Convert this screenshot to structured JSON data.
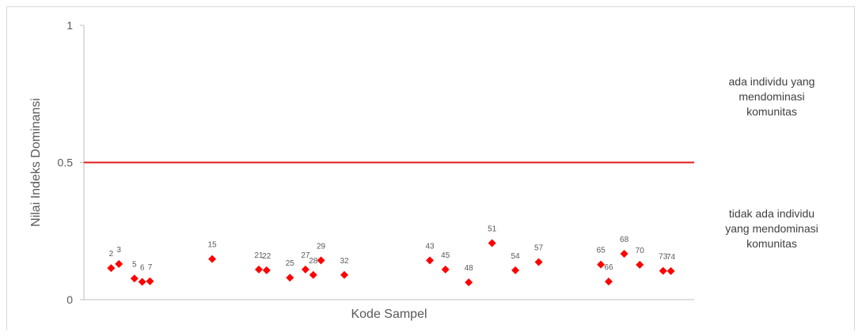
{
  "chart_data": {
    "type": "scatter",
    "title": "",
    "xlabel": "Kode Sampel",
    "ylabel": "Nilai Indeks Dominansi",
    "ylim": [
      0,
      1
    ],
    "yticks": [
      0,
      0.5,
      1
    ],
    "y_tick_labels": [
      "0",
      "0.5",
      "1"
    ],
    "grid": false,
    "marker": "diamond",
    "marker_color": "#ff0000",
    "threshold": {
      "value": 0.5,
      "color": "#e31a1c"
    },
    "x_range": [
      -1.5,
      77
    ],
    "points": [
      {
        "label": "2",
        "x": 2,
        "y": 0.115
      },
      {
        "label": "3",
        "x": 3,
        "y": 0.13
      },
      {
        "label": "5",
        "x": 5,
        "y": 0.077
      },
      {
        "label": "6",
        "x": 6,
        "y": 0.065
      },
      {
        "label": "7",
        "x": 7,
        "y": 0.067
      },
      {
        "label": "15",
        "x": 15,
        "y": 0.148
      },
      {
        "label": "21",
        "x": 21,
        "y": 0.11
      },
      {
        "label": "22",
        "x": 22,
        "y": 0.107
      },
      {
        "label": "25",
        "x": 25,
        "y": 0.08
      },
      {
        "label": "27",
        "x": 27,
        "y": 0.11
      },
      {
        "label": "28",
        "x": 28,
        "y": 0.09
      },
      {
        "label": "29",
        "x": 29,
        "y": 0.143
      },
      {
        "label": "32",
        "x": 32,
        "y": 0.09
      },
      {
        "label": "43",
        "x": 43,
        "y": 0.143
      },
      {
        "label": "45",
        "x": 45,
        "y": 0.11
      },
      {
        "label": "48",
        "x": 48,
        "y": 0.063
      },
      {
        "label": "51",
        "x": 51,
        "y": 0.206
      },
      {
        "label": "54",
        "x": 54,
        "y": 0.107
      },
      {
        "label": "57",
        "x": 57,
        "y": 0.137
      },
      {
        "label": "65",
        "x": 65,
        "y": 0.128
      },
      {
        "label": "66",
        "x": 66,
        "y": 0.066
      },
      {
        "label": "68",
        "x": 68,
        "y": 0.167
      },
      {
        "label": "70",
        "x": 70,
        "y": 0.127
      },
      {
        "label": "73",
        "x": 73,
        "y": 0.105
      },
      {
        "label": "74",
        "x": 74,
        "y": 0.104
      }
    ],
    "annotations": {
      "upper": [
        "ada individu yang",
        "mendominasi",
        "komunitas"
      ],
      "lower": [
        "tidak ada individu",
        "yang mendominasi",
        "komunitas"
      ]
    }
  }
}
